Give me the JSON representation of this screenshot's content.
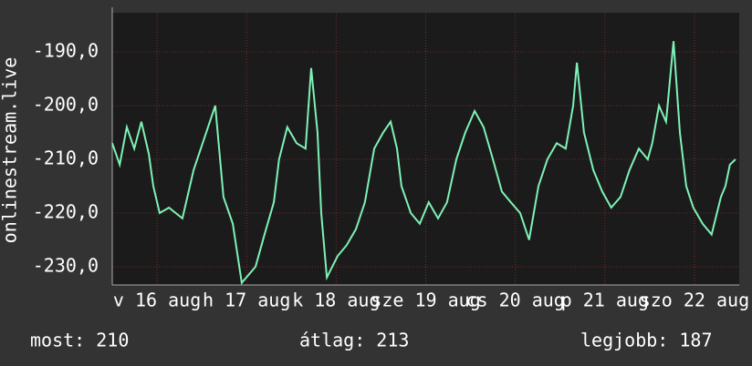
{
  "chart_data": {
    "type": "line",
    "y_label": "onlinestream.live",
    "x": [
      0,
      2.0,
      3.9,
      5.9,
      7.8,
      9.8,
      11.0,
      12.7,
      15.2,
      18.8,
      21.8,
      24.7,
      27.6,
      29.8,
      32.3,
      34.7,
      38.4,
      40.8,
      43.3,
      44.7,
      46.9,
      49.4,
      51.8,
      53.3,
      55.0,
      56.0,
      57.5,
      60.4,
      62.8,
      65.3,
      67.7,
      70.2,
      72.6,
      74.6,
      76.3,
      77.5,
      80.0,
      82.4,
      84.8,
      87.3,
      89.7,
      92.2,
      94.6,
      97.1,
      99.5,
      102.0,
      104.4,
      106.8,
      109.3,
      111.7,
      114.2,
      116.6,
      119.1,
      121.5,
      123.5,
      124.5,
      126.4,
      128.9,
      131.3,
      133.7,
      136.2,
      138.6,
      141.1,
      143.5,
      144.7,
      146.5,
      148.4,
      150.4,
      152.1,
      153.8,
      155.7,
      158.2,
      160.6,
      163.1,
      164.3,
      165.5,
      167.0
    ],
    "series": [
      {
        "name": "onlinestream.live",
        "color": "#7ef2b6",
        "values": [
          -207,
          -211,
          -204,
          -208,
          -203,
          -209,
          -215,
          -220,
          -219,
          -221,
          -212,
          -206,
          -200,
          -217,
          -222,
          -233,
          -230,
          -224,
          -218,
          -210,
          -204,
          -207,
          -208,
          -193,
          -205,
          -220,
          -232,
          -228,
          -226,
          -223,
          -218,
          -208,
          -205,
          -203,
          -208,
          -215,
          -220,
          -222,
          -218,
          -221,
          -218,
          -210,
          -205,
          -201,
          -204,
          -210,
          -216,
          -218,
          -220,
          -225,
          -215,
          -210,
          -207,
          -208,
          -200,
          -192,
          -205,
          -212,
          -216,
          -219,
          -217,
          -212,
          -208,
          -210,
          -207,
          -200,
          -203,
          -188,
          -205,
          -215,
          -219,
          -222,
          -224,
          -217,
          -215,
          -211,
          -210
        ]
      }
    ],
    "xlim": [
      0,
      168
    ],
    "xticks": [
      {
        "value": 12,
        "label": "v 16 aug"
      },
      {
        "value": 36,
        "label": "h 17 aug"
      },
      {
        "value": 60,
        "label": "k 18 aug"
      },
      {
        "value": 84,
        "label": "sze 19 aug"
      },
      {
        "value": 108,
        "label": "cs 20 aug"
      },
      {
        "value": 132,
        "label": "p 21 aug"
      },
      {
        "value": 156,
        "label": "szo 22 aug"
      }
    ],
    "ylim": [
      -233.4,
      -182.7
    ],
    "yticks": [
      {
        "value": -190,
        "label": "-190,0"
      },
      {
        "value": -200,
        "label": "-200,0"
      },
      {
        "value": -210,
        "label": "-210,0"
      },
      {
        "value": -220,
        "label": "-220,0"
      },
      {
        "value": -230,
        "label": "-230,0"
      }
    ],
    "grid": true,
    "footer": [
      "most: 210",
      "átlag: 213",
      "legjobb: 187"
    ]
  }
}
